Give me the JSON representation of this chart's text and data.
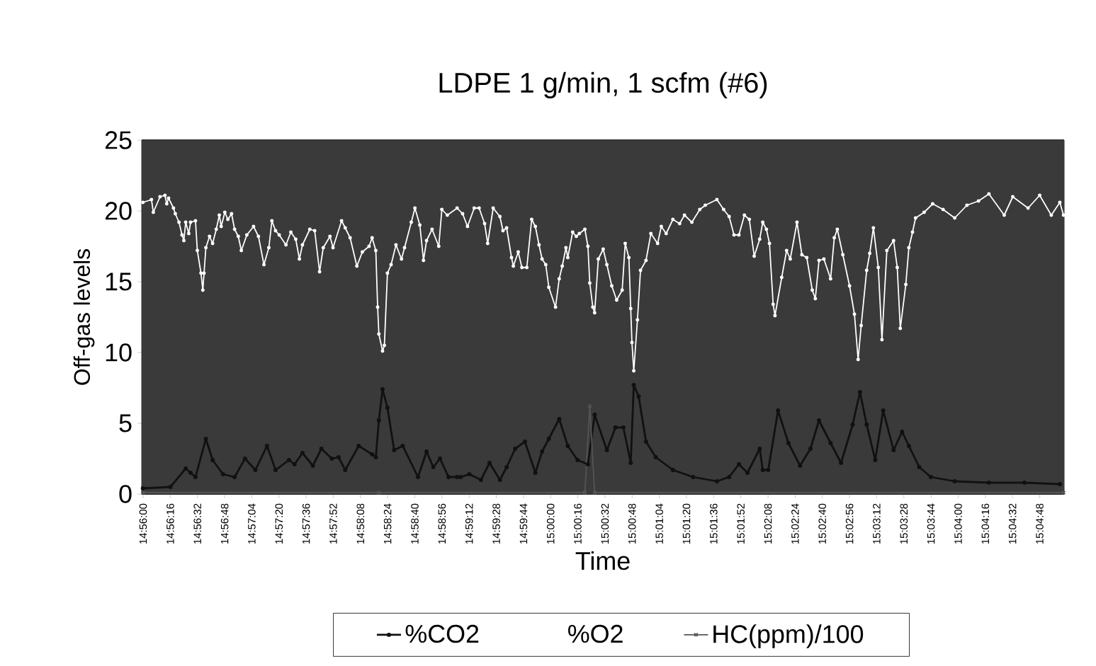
{
  "chart_data": {
    "type": "line",
    "title": "LDPE 1 g/min, 1 scfm (#6)",
    "xlabel": "Time",
    "ylabel": "Off-gas levels",
    "xlim": [
      14.9331,
      15.084
    ],
    "ylim": [
      0,
      25
    ],
    "yticks": [
      0,
      5,
      10,
      15,
      20,
      25
    ],
    "xticks": [
      {
        "value": 14.93333,
        "label": "14:56:00"
      },
      {
        "value": 14.93778,
        "label": "14:56:16"
      },
      {
        "value": 14.94222,
        "label": "14:56:32"
      },
      {
        "value": 14.94667,
        "label": "14:56:48"
      },
      {
        "value": 14.95111,
        "label": "14:57:04"
      },
      {
        "value": 14.95556,
        "label": "14:57:20"
      },
      {
        "value": 14.96,
        "label": "14:57:36"
      },
      {
        "value": 14.96444,
        "label": "14:57:52"
      },
      {
        "value": 14.96889,
        "label": "14:58:08"
      },
      {
        "value": 14.97333,
        "label": "14:58:24"
      },
      {
        "value": 14.97778,
        "label": "14:58:40"
      },
      {
        "value": 14.98222,
        "label": "14:58:56"
      },
      {
        "value": 14.98667,
        "label": "14:59:12"
      },
      {
        "value": 14.99111,
        "label": "14:59:28"
      },
      {
        "value": 14.99556,
        "label": "14:59:44"
      },
      {
        "value": 15.0,
        "label": "15:00:00"
      },
      {
        "value": 15.00444,
        "label": "15:00:16"
      },
      {
        "value": 15.00889,
        "label": "15:00:32"
      },
      {
        "value": 15.01333,
        "label": "15:00:48"
      },
      {
        "value": 15.01778,
        "label": "15:01:04"
      },
      {
        "value": 15.02222,
        "label": "15:01:20"
      },
      {
        "value": 15.02667,
        "label": "15:01:36"
      },
      {
        "value": 15.03111,
        "label": "15:01:52"
      },
      {
        "value": 15.03556,
        "label": "15:02:08"
      },
      {
        "value": 15.04,
        "label": "15:02:24"
      },
      {
        "value": 15.04444,
        "label": "15:02:40"
      },
      {
        "value": 15.04889,
        "label": "15:02:56"
      },
      {
        "value": 15.05333,
        "label": "15:03:12"
      },
      {
        "value": 15.05778,
        "label": "15:03:28"
      },
      {
        "value": 15.06222,
        "label": "15:03:44"
      },
      {
        "value": 15.06667,
        "label": "15:04:00"
      },
      {
        "value": 15.07111,
        "label": "15:04:16"
      },
      {
        "value": 15.07556,
        "label": "15:04:32"
      },
      {
        "value": 15.08,
        "label": "15:04:48"
      }
    ],
    "grid": "y",
    "legend": "bottom",
    "series": [
      {
        "name": "%CO2",
        "color": "#111111",
        "marker": "circle",
        "x": [
          14.9333,
          14.9378,
          14.9403,
          14.9411,
          14.9419,
          14.9436,
          14.9447,
          14.9464,
          14.9483,
          14.95,
          14.9517,
          14.9536,
          14.955,
          14.9572,
          14.9581,
          14.9594,
          14.9611,
          14.9625,
          14.9642,
          14.9653,
          14.9664,
          14.9686,
          14.9708,
          14.9714,
          14.9719,
          14.9725,
          14.9733,
          14.9744,
          14.9758,
          14.9783,
          14.9797,
          14.9808,
          14.9819,
          14.9833,
          14.9847,
          14.9853,
          14.9867,
          14.9886,
          14.99,
          14.9917,
          14.9928,
          14.9942,
          14.9958,
          14.9975,
          14.9986,
          14.9997,
          15.0014,
          15.0028,
          15.0044,
          15.0061,
          15.0072,
          15.0092,
          15.0106,
          15.0119,
          15.0131,
          15.0136,
          15.0144,
          15.0156,
          15.0172,
          15.02,
          15.0233,
          15.0272,
          15.0292,
          15.0308,
          15.0322,
          15.0342,
          15.0347,
          15.0356,
          15.0372,
          15.0389,
          15.0408,
          15.0425,
          15.0439,
          15.0458,
          15.0475,
          15.0494,
          15.0506,
          15.0517,
          15.0531,
          15.0544,
          15.0561,
          15.0575,
          15.0586,
          15.0603,
          15.0622,
          15.0661,
          15.0717,
          15.0775,
          15.0833
        ],
        "values": [
          0.4,
          0.5,
          1.8,
          1.5,
          1.2,
          3.9,
          2.4,
          1.4,
          1.2,
          2.5,
          1.7,
          3.4,
          1.7,
          2.4,
          2.1,
          2.9,
          2.0,
          3.2,
          2.5,
          2.6,
          1.7,
          3.4,
          2.8,
          2.6,
          5.2,
          7.4,
          6.1,
          3.1,
          3.4,
          1.2,
          3.0,
          1.9,
          2.5,
          1.2,
          1.2,
          1.2,
          1.4,
          1.0,
          2.2,
          1.0,
          1.9,
          3.2,
          3.7,
          1.5,
          3.0,
          3.9,
          5.3,
          3.4,
          2.4,
          2.1,
          5.6,
          3.1,
          4.7,
          4.7,
          2.2,
          7.7,
          6.9,
          3.7,
          2.6,
          1.7,
          1.2,
          0.9,
          1.2,
          2.1,
          1.5,
          3.2,
          1.7,
          1.7,
          5.9,
          3.6,
          2.0,
          3.2,
          5.2,
          3.6,
          2.2,
          4.9,
          7.2,
          4.9,
          2.4,
          5.9,
          3.1,
          4.4,
          3.4,
          1.9,
          1.2,
          0.9,
          0.8,
          0.8,
          0.7
        ]
      },
      {
        "name": "%O2",
        "color": "#ffffff",
        "marker": "circle",
        "x": [
          14.9333,
          14.9347,
          14.935,
          14.9361,
          14.9369,
          14.9372,
          14.9375,
          14.9383,
          14.9386,
          14.9392,
          14.9397,
          14.94,
          14.9403,
          14.9408,
          14.9411,
          14.9419,
          14.9422,
          14.9428,
          14.9431,
          14.9433,
          14.9436,
          14.9442,
          14.9447,
          14.9453,
          14.9458,
          14.9461,
          14.9467,
          14.9472,
          14.9478,
          14.9483,
          14.9489,
          14.9494,
          14.9503,
          14.9514,
          14.9522,
          14.9531,
          14.9539,
          14.9544,
          14.955,
          14.9556,
          14.9567,
          14.9575,
          14.9583,
          14.9589,
          14.9594,
          14.9606,
          14.9614,
          14.9622,
          14.9628,
          14.9639,
          14.9644,
          14.9658,
          14.9664,
          14.9672,
          14.9683,
          14.9692,
          14.9703,
          14.9708,
          14.9714,
          14.9717,
          14.9719,
          14.9725,
          14.9728,
          14.9733,
          14.9739,
          14.9747,
          14.9756,
          14.9761,
          14.9772,
          14.9778,
          14.9786,
          14.9792,
          14.9797,
          14.9806,
          14.9817,
          14.9822,
          14.9831,
          14.9847,
          14.9856,
          14.9864,
          14.9875,
          14.9883,
          14.9892,
          14.9897,
          14.9906,
          14.9917,
          14.9922,
          14.9928,
          14.9936,
          14.9939,
          14.9947,
          14.9953,
          14.9961,
          14.9969,
          14.9975,
          14.9981,
          14.9986,
          14.9992,
          14.9997,
          15.0008,
          15.0014,
          15.0019,
          15.0025,
          15.0028,
          15.0036,
          15.0042,
          15.0047,
          15.0056,
          15.0061,
          15.0064,
          15.0069,
          15.0072,
          15.0078,
          15.0086,
          15.0092,
          15.01,
          15.0108,
          15.0117,
          15.0122,
          15.0128,
          15.0131,
          15.0133,
          15.0136,
          15.0142,
          15.0147,
          15.0156,
          15.0164,
          15.0175,
          15.0181,
          15.0189,
          15.02,
          15.0211,
          15.0219,
          15.0231,
          15.0244,
          15.0253,
          15.0272,
          15.0283,
          15.0292,
          15.03,
          15.0308,
          15.0317,
          15.0325,
          15.0333,
          15.0342,
          15.0347,
          15.0353,
          15.0358,
          15.0364,
          15.0367,
          15.0378,
          15.0386,
          15.0392,
          15.0403,
          15.0411,
          15.0419,
          15.0428,
          15.0433,
          15.0439,
          15.0447,
          15.0458,
          15.0464,
          15.0469,
          15.0478,
          15.0489,
          15.0497,
          15.0503,
          15.0508,
          15.0517,
          15.0522,
          15.0528,
          15.0536,
          15.0542,
          15.055,
          15.0561,
          15.0567,
          15.0572,
          15.0581,
          15.0586,
          15.0592,
          15.0597,
          15.0611,
          15.0625,
          15.0642,
          15.0661,
          15.0681,
          15.07,
          15.0717,
          15.0742,
          15.0756,
          15.0781,
          15.08,
          15.0819,
          15.0833,
          15.0839
        ],
        "values": [
          20.6,
          20.8,
          19.9,
          21.0,
          21.1,
          20.5,
          20.9,
          20.2,
          19.8,
          19.2,
          18.3,
          17.9,
          19.2,
          18.4,
          19.2,
          19.3,
          17.2,
          15.6,
          14.4,
          15.6,
          17.4,
          18.2,
          17.7,
          18.7,
          19.7,
          18.9,
          19.9,
          19.4,
          19.8,
          18.7,
          18.2,
          17.2,
          18.3,
          18.9,
          18.2,
          16.2,
          17.4,
          19.3,
          18.6,
          18.3,
          17.6,
          18.5,
          18.0,
          16.6,
          17.6,
          18.7,
          18.6,
          15.7,
          17.4,
          18.2,
          17.4,
          19.3,
          18.8,
          18.1,
          16.1,
          17.1,
          17.5,
          18.1,
          17.2,
          13.2,
          11.3,
          10.1,
          10.5,
          15.6,
          16.2,
          17.6,
          16.6,
          17.4,
          19.2,
          20.2,
          19.0,
          16.5,
          17.9,
          18.7,
          17.5,
          20.1,
          19.7,
          20.2,
          19.8,
          18.9,
          20.2,
          20.2,
          19.1,
          17.7,
          20.2,
          19.6,
          18.6,
          18.8,
          16.7,
          16.1,
          17.1,
          16.0,
          16.0,
          19.4,
          18.9,
          17.6,
          16.6,
          16.2,
          14.6,
          13.2,
          15.2,
          16.1,
          17.4,
          16.7,
          18.5,
          18.2,
          18.4,
          18.7,
          17.5,
          14.9,
          13.2,
          12.8,
          16.6,
          17.3,
          16.2,
          14.7,
          13.7,
          14.4,
          17.7,
          16.7,
          13.1,
          10.7,
          8.7,
          12.3,
          15.8,
          16.5,
          18.4,
          17.7,
          18.9,
          18.4,
          19.4,
          19.1,
          19.7,
          19.2,
          20.1,
          20.4,
          20.8,
          20.1,
          19.6,
          18.3,
          18.3,
          19.7,
          19.4,
          16.8,
          18.0,
          19.2,
          18.7,
          17.7,
          13.4,
          12.6,
          15.3,
          17.2,
          16.6,
          19.2,
          16.9,
          16.7,
          14.4,
          13.8,
          16.5,
          16.6,
          15.2,
          18.1,
          18.7,
          16.9,
          14.7,
          12.7,
          9.5,
          11.9,
          15.8,
          17.0,
          18.8,
          16.0,
          10.9,
          17.2,
          17.9,
          16.0,
          11.7,
          14.8,
          17.4,
          18.5,
          19.5,
          19.9,
          20.5,
          20.1,
          19.5,
          20.4,
          20.7,
          21.2,
          19.7,
          21.0,
          20.2,
          21.1,
          19.7,
          20.6,
          19.7
        ]
      },
      {
        "name": "HC(ppm)/100",
        "color": "#555555",
        "marker": "cross",
        "x": [
          14.9333,
          14.9719,
          15.0056,
          15.0064,
          15.0072,
          15.0839
        ],
        "values": [
          0.1,
          0.1,
          0.1,
          6.2,
          0.1,
          0.1
        ]
      }
    ]
  }
}
